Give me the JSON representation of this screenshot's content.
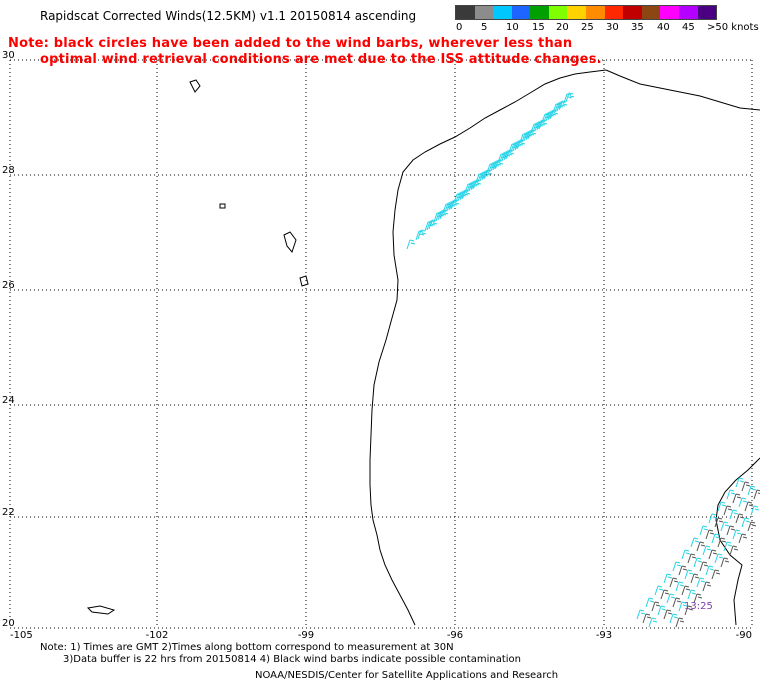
{
  "title": "Rapidscat Corrected Winds(12.5KM) v1.1 20150814 ascending",
  "note_line1": "Note: black circles have been added to the wind barbs, wherever less than",
  "note_line2": "optimal wind retrieval conditions are met due to the ISS attitude changes.",
  "color_scale": {
    "labels": [
      "0",
      "5",
      "10",
      "15",
      "20",
      "25",
      "30",
      "35",
      "40",
      "45",
      ">50 knots"
    ],
    "colors": [
      "#3a3a3a",
      "#8c8c8c",
      "#00c8ff",
      "#1e64ff",
      "#00a000",
      "#80ff00",
      "#ffd200",
      "#ff8c00",
      "#ff2800",
      "#c00000",
      "#8c4614",
      "#ff00ff",
      "#b400ff",
      "#4b0082"
    ]
  },
  "map": {
    "lat_labels": [
      "30",
      "28",
      "26",
      "24",
      "22",
      "20"
    ],
    "lon_labels": [
      "-105",
      "-102",
      "-99",
      "-96",
      "-93",
      "-90"
    ],
    "time_annotation": "13:25"
  },
  "footer_line1": "Note: 1) Times are GMT 2)Times along bottom correspond to measurement at 30N",
  "footer_line2": "3)Data buffer is 22 hrs from 20150814 4) Black wind barbs indicate possible contamination",
  "credit": "NOAA/NESDIS/Center for Satellite Applications and Research"
}
